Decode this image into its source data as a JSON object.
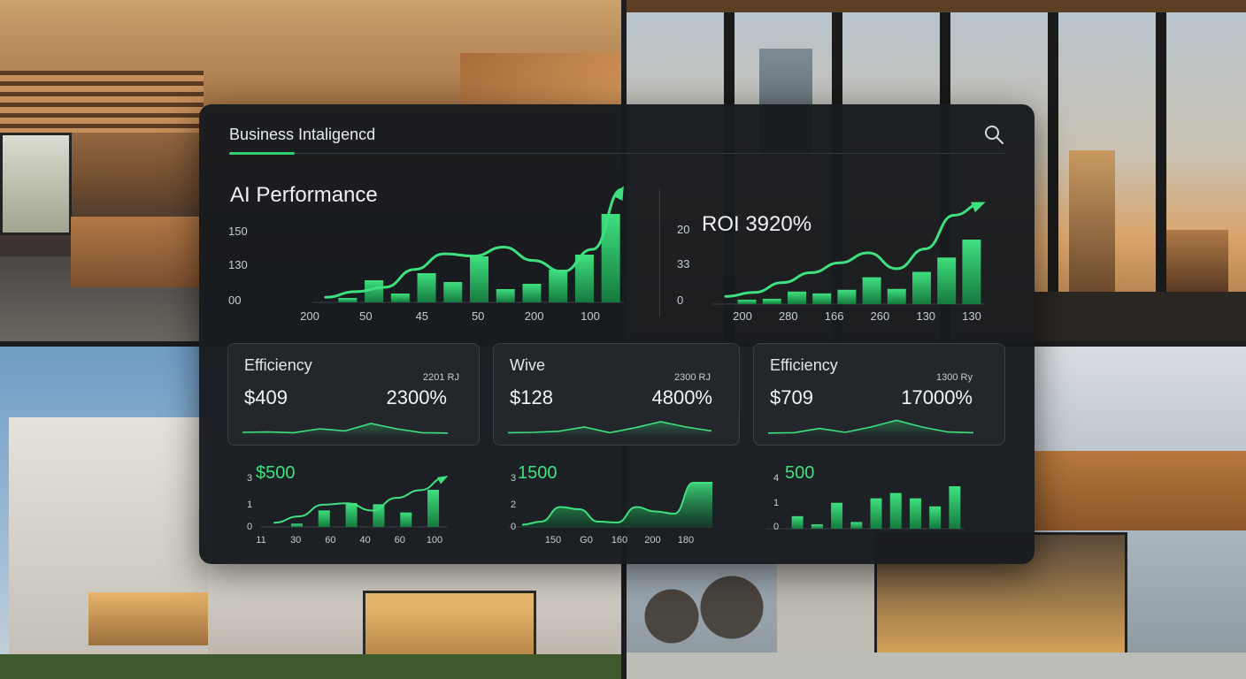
{
  "header": {
    "title": "Business Intaligencd",
    "search_icon": "search-icon"
  },
  "colors": {
    "accent": "#2fd06f",
    "panel": "#181b1f",
    "card": "#23272c"
  },
  "chart_data": [
    {
      "type": "bar",
      "title": "AI Performance",
      "y_ticks": [
        "150",
        "130",
        "00"
      ],
      "x_ticks": [
        "200",
        "50",
        "45",
        "50",
        "200",
        "100"
      ],
      "values": [
        5,
        25,
        10,
        33,
        23,
        52,
        15,
        21,
        37,
        54,
        100
      ],
      "trend": [
        3,
        8,
        12,
        28,
        42,
        40,
        48,
        36,
        26,
        46,
        100
      ],
      "ylim": [
        0,
        150
      ]
    },
    {
      "type": "bar",
      "title": "ROI 3920%",
      "y_ticks": [
        "20",
        "33",
        "0"
      ],
      "x_ticks": [
        "200",
        "280",
        "166",
        "260",
        "130",
        "130"
      ],
      "values": [
        5,
        6,
        14,
        12,
        16,
        30,
        17,
        36,
        52,
        72
      ],
      "trend": [
        6,
        10,
        20,
        30,
        40,
        50,
        34,
        54,
        88,
        100
      ],
      "ylim": [
        0,
        100
      ]
    },
    {
      "type": "bar",
      "title": "$500",
      "y_ticks": [
        "3",
        "1",
        "0"
      ],
      "x_ticks": [
        "11",
        "30",
        "60",
        "40",
        "60",
        "100"
      ],
      "values": [
        8,
        40,
        58,
        55,
        35,
        90
      ],
      "trend": [
        5,
        18,
        42,
        45,
        30,
        56,
        72,
        98
      ],
      "ylim": [
        0,
        3
      ]
    },
    {
      "type": "area",
      "title": "1500",
      "y_ticks": [
        "3",
        "2",
        "0"
      ],
      "x_ticks": [
        "150",
        "G0",
        "160",
        "200",
        "180"
      ],
      "values": [
        5,
        12,
        45,
        40,
        12,
        10,
        45,
        35,
        30,
        100,
        100
      ],
      "ylim": [
        0,
        3
      ]
    },
    {
      "type": "bar",
      "title": "500",
      "y_ticks": [
        "4",
        "1",
        "0"
      ],
      "x_ticks": [],
      "values": [
        28,
        10,
        58,
        15,
        68,
        80,
        68,
        50,
        95
      ],
      "ylim": [
        0,
        4
      ]
    }
  ],
  "kpi_cards": [
    {
      "label": "Efficiency",
      "value": "$409",
      "pct": "2300%",
      "small": "2201 RJ",
      "spark": [
        10,
        12,
        8,
        30,
        18,
        60,
        30,
        8,
        6
      ]
    },
    {
      "label": "Wive",
      "value": "$128",
      "pct": "4800%",
      "small": "2300 RJ",
      "spark": [
        8,
        10,
        16,
        40,
        8,
        36,
        70,
        40,
        18
      ]
    },
    {
      "label": "Efficiency",
      "value": "$709",
      "pct": "17000%",
      "small": "1300 Ry",
      "spark": [
        6,
        8,
        32,
        10,
        40,
        78,
        40,
        12,
        8
      ]
    }
  ]
}
